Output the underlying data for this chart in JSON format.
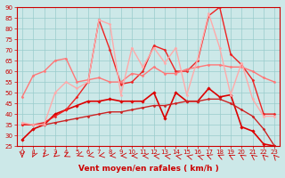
{
  "xlabel": "Vent moyen/en rafales ( km/h )",
  "background_color": "#cce8e8",
  "grid_color": "#99cccc",
  "x": [
    0,
    1,
    2,
    3,
    4,
    5,
    6,
    7,
    8,
    9,
    10,
    11,
    12,
    13,
    14,
    15,
    16,
    17,
    18,
    19,
    20,
    21,
    22,
    23
  ],
  "series": [
    {
      "color": "#dd0000",
      "lw": 1.2,
      "marker": "D",
      "ms": 1.8,
      "values": [
        28,
        33,
        35,
        40,
        42,
        44,
        46,
        46,
        47,
        46,
        46,
        46,
        50,
        38,
        50,
        46,
        46,
        52,
        48,
        49,
        34,
        32,
        26,
        25
      ]
    },
    {
      "color": "#cc2222",
      "lw": 1.0,
      "marker": "D",
      "ms": 1.5,
      "values": [
        35,
        35,
        35,
        36,
        37,
        38,
        39,
        40,
        41,
        41,
        42,
        43,
        44,
        44,
        45,
        46,
        46,
        47,
        47,
        45,
        42,
        39,
        33,
        25
      ]
    },
    {
      "color": "#ee2222",
      "lw": 1.0,
      "marker": "D",
      "ms": 1.5,
      "values": [
        35,
        35,
        36,
        39,
        42,
        48,
        55,
        84,
        70,
        54,
        55,
        60,
        72,
        70,
        60,
        60,
        65,
        86,
        90,
        68,
        63,
        56,
        40,
        40
      ]
    },
    {
      "color": "#ff7777",
      "lw": 1.0,
      "marker": "D",
      "ms": 1.5,
      "values": [
        48,
        58,
        60,
        65,
        66,
        55,
        56,
        57,
        55,
        55,
        59,
        58,
        62,
        59,
        59,
        61,
        62,
        63,
        63,
        62,
        62,
        60,
        57,
        55
      ]
    },
    {
      "color": "#ffaaaa",
      "lw": 1.0,
      "marker": "D",
      "ms": 1.5,
      "values": [
        36,
        35,
        35,
        50,
        55,
        52,
        55,
        84,
        82,
        49,
        71,
        62,
        71,
        64,
        71,
        49,
        66,
        87,
        71,
        49,
        64,
        47,
        39,
        39
      ]
    }
  ],
  "ylim": [
    25,
    90
  ],
  "yticks": [
    25,
    30,
    35,
    40,
    45,
    50,
    55,
    60,
    65,
    70,
    75,
    80,
    85,
    90
  ],
  "tick_fontsize": 5.0,
  "label_fontsize": 6.5,
  "arrow_angles": [
    270,
    255,
    245,
    235,
    220,
    210,
    200,
    195,
    190,
    185,
    180,
    175,
    170,
    165,
    160,
    155,
    150,
    145,
    140,
    135,
    130,
    125,
    120,
    115
  ]
}
